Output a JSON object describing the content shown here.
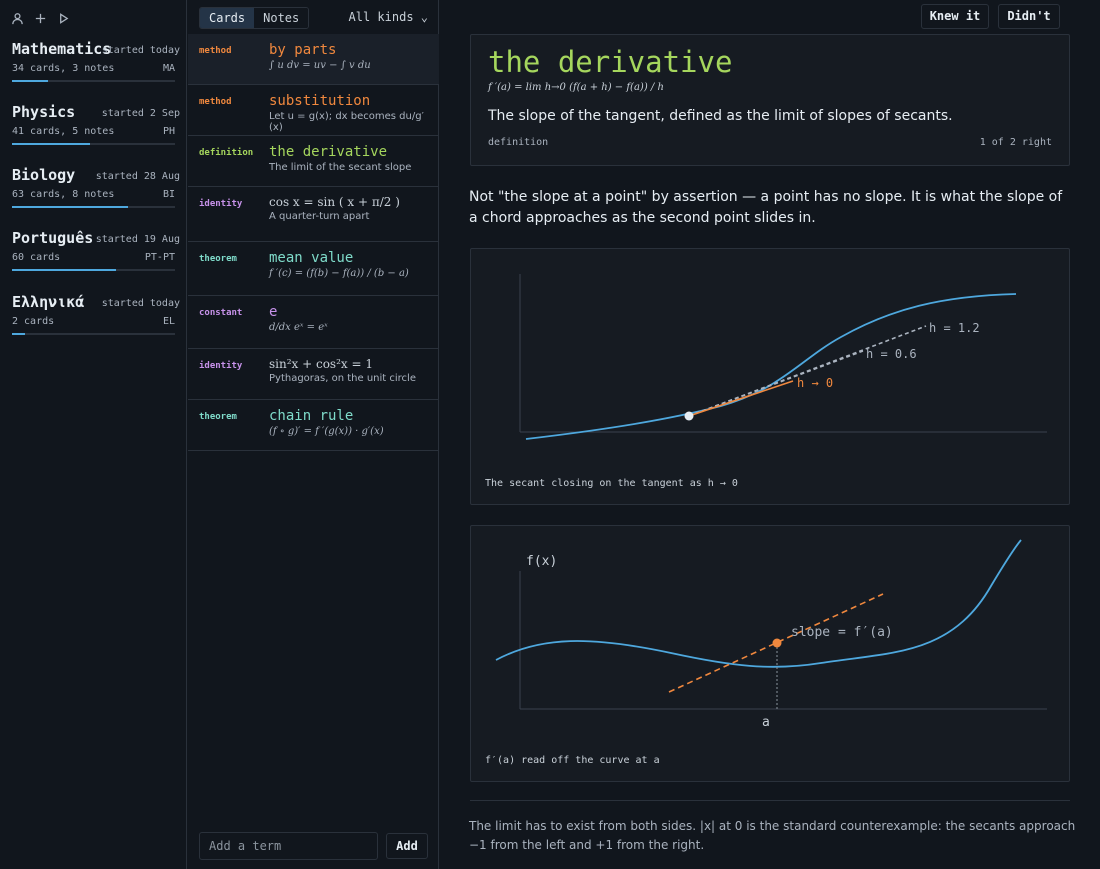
{
  "left": {
    "icons": [
      "user-icon",
      "plus-icon",
      "play-icon"
    ],
    "subjects": [
      {
        "name": "Mathematics",
        "started": "started today",
        "meta": "34 cards, 3 notes",
        "code": "MA",
        "progress": 0.22
      },
      {
        "name": "Physics",
        "started": "started 2 Sep",
        "meta": "41 cards, 5 notes",
        "code": "PH",
        "progress": 0.48
      },
      {
        "name": "Biology",
        "started": "started 28 Aug",
        "meta": "63 cards, 8 notes",
        "code": "BI",
        "progress": 0.71
      },
      {
        "name": "Português",
        "started": "started 19 Aug",
        "meta": "60 cards",
        "code": "PT-PT",
        "progress": 0.64
      },
      {
        "name": "Ελληνικά",
        "started": "started today",
        "meta": "2 cards",
        "code": "EL",
        "progress": 0.08
      }
    ]
  },
  "mid": {
    "tabs": [
      "Cards",
      "Notes"
    ],
    "filter": "All kinds ⌄",
    "cards": [
      {
        "kind": "method",
        "kind_color": "#f0883e",
        "term": "by parts",
        "term_color": "#f0883e",
        "eq": "∫ u dv = uv − ∫ v du",
        "sub": ""
      },
      {
        "kind": "method",
        "kind_color": "#f0883e",
        "term": "substitution",
        "term_color": "#f0883e",
        "eq": "",
        "sub": "Let u = g(x); dx becomes du/g′(x)"
      },
      {
        "kind": "definition",
        "kind_color": "#a5d65d",
        "term": "the derivative",
        "term_color": "#a5d65d",
        "eq": "",
        "sub": "The limit of the secant slope"
      },
      {
        "kind": "identity",
        "kind_color": "#c792ea",
        "term": "",
        "term_color": "#c792ea",
        "eq": "cos x = sin ( x + π/2 )",
        "sub": "A quarter-turn apart"
      },
      {
        "kind": "theorem",
        "kind_color": "#7fdbca",
        "term": "mean value",
        "term_color": "#7fdbca",
        "eq": "f ′(c) = (f(b) − f(a)) / (b − a)",
        "sub": ""
      },
      {
        "kind": "constant",
        "kind_color": "#c792ea",
        "term": "e",
        "term_color": "#c792ea",
        "eq": "d/dx eˣ = eˣ",
        "sub": ""
      },
      {
        "kind": "identity",
        "kind_color": "#c792ea",
        "term": "",
        "term_color": "#c792ea",
        "eq": "sin²x + cos²x = 1",
        "sub": "Pythagoras, on the unit circle"
      },
      {
        "kind": "theorem",
        "kind_color": "#7fdbca",
        "term": "chain rule",
        "term_color": "#7fdbca",
        "eq": "(f ∘ g)′ = f ′(g(x)) · g′(x)",
        "sub": ""
      }
    ],
    "add_placeholder": "Add a term",
    "add_label": "Add"
  },
  "right": {
    "knew_label": "Knew it",
    "didnt_label": "Didn't",
    "card": {
      "title": "the derivative",
      "equation": "f ′(a) = lim h→0 (f(a + h) − f(a)) / h",
      "definition": "The slope of the tangent, defined as the limit of slopes of secants.",
      "kind": "definition",
      "score": "1 of 2 right"
    },
    "paragraph": "Not \"the slope at a point\" by assertion — a point has no slope. It is what the slope of a chord approaches as the second point slides in.",
    "fig1": {
      "labels": [
        "h = 1.2",
        "h = 0.6",
        "h → 0"
      ],
      "caption": "The secant closing on the tangent as h → 0"
    },
    "fig2": {
      "ylabel": "f(x)",
      "xlabel": "a",
      "slope_label": "slope = f′(a)",
      "caption": "f′(a) read off the curve at a"
    },
    "note": "The limit has to exist from both sides. |x| at 0 is the standard counterexample: the secants approach −1 from the left and +1 from the right.",
    "colors": {
      "curve": "#4ea8de",
      "accent": "#f0883e",
      "dashed": "#aab3bf",
      "green": "#a5d65d"
    }
  }
}
